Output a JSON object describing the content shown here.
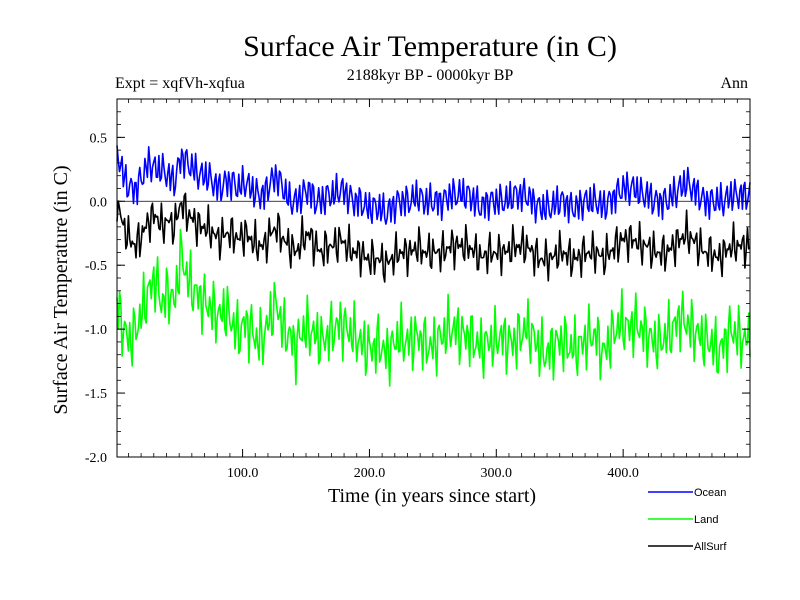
{
  "chart_data": {
    "type": "line",
    "title": "Surface Air Temperature (in C)",
    "subtitle": "2188kyr BP - 0000kyr BP",
    "experiment_label": "Expt = xqfVh-xqfua",
    "period_label": "Ann",
    "xlabel": "Time (in years since start)",
    "ylabel": "Surface Air Temperature (in C)",
    "xlim": [
      1,
      500
    ],
    "ylim": [
      -2.0,
      0.8
    ],
    "x_ticks": [
      100,
      200,
      300,
      400
    ],
    "x_tick_labels": [
      "100.0",
      "200.0",
      "300.0",
      "400.0"
    ],
    "y_ticks": [
      -2.0,
      -1.5,
      -1.0,
      -0.5,
      0.0,
      0.5
    ],
    "y_tick_labels": [
      "-2.0",
      "-1.5",
      "-1.0",
      "-0.5",
      "0.0",
      "0.5"
    ],
    "zero_line": true,
    "legend_position": "bottom-right, below plot",
    "series": [
      {
        "name": "Ocean",
        "color": "#0000ff",
        "values": [
          0.4,
          0.2,
          0.1,
          0.1,
          0.2,
          0.3,
          0.25,
          0.25,
          0.2,
          0.15,
          0.35,
          0.3,
          0.25,
          0.2,
          0.2,
          0.15,
          0.1,
          0.15,
          0.15,
          0.1,
          0.15,
          0.1,
          0.05,
          0.05,
          0.15,
          0.2,
          0.1,
          0.0,
          0.0,
          0.05,
          0.1,
          0.0,
          0.0,
          0.05,
          0.05,
          0.1,
          0.05,
          0.0,
          0.0,
          -0.05,
          -0.05,
          -0.05,
          -0.1,
          -0.05,
          0.0,
          0.0,
          0.0,
          0.05,
          0.0,
          0.0,
          0.0,
          0.0,
          0.05,
          0.05,
          0.05,
          0.05,
          0.0,
          -0.05,
          0.0,
          0.0,
          0.0,
          0.0,
          0.05,
          0.05,
          0.05,
          0.0,
          -0.05,
          -0.05,
          -0.05,
          0.0,
          0.0,
          -0.05,
          -0.05,
          0.0,
          0.0,
          0.0,
          -0.05,
          0.0,
          0.05,
          0.1,
          0.1,
          0.1,
          0.05,
          0.05,
          0.0,
          0.0,
          0.0,
          0.05,
          0.1,
          0.15,
          0.1,
          0.05,
          0.0,
          0.0,
          0.0,
          0.0,
          0.05,
          0.05,
          0.05,
          0.05
        ]
      },
      {
        "name": "Land",
        "color": "#00ff00",
        "values": [
          -0.8,
          -1.0,
          -1.1,
          -1.0,
          -0.85,
          -0.7,
          -0.6,
          -0.8,
          -0.7,
          -0.8,
          -0.4,
          -0.6,
          -0.7,
          -0.75,
          -0.8,
          -0.85,
          -0.9,
          -0.85,
          -0.95,
          -1.05,
          -0.95,
          -1.0,
          -1.1,
          -1.05,
          -0.9,
          -0.8,
          -1.0,
          -1.05,
          -1.15,
          -1.0,
          -1.0,
          -1.05,
          -1.1,
          -1.05,
          -1.0,
          -0.95,
          -1.0,
          -1.05,
          -1.1,
          -1.15,
          -1.15,
          -1.1,
          -1.2,
          -1.15,
          -1.05,
          -1.1,
          -1.1,
          -1.05,
          -1.1,
          -1.15,
          -1.1,
          -1.05,
          -1.0,
          -1.0,
          -1.05,
          -1.05,
          -1.1,
          -1.15,
          -1.1,
          -1.1,
          -1.05,
          -1.1,
          -1.1,
          -1.05,
          -1.0,
          -1.05,
          -1.15,
          -1.2,
          -1.15,
          -1.1,
          -1.1,
          -1.15,
          -1.15,
          -1.1,
          -1.05,
          -1.05,
          -1.2,
          -1.1,
          -1.0,
          -0.95,
          -1.0,
          -0.95,
          -1.0,
          -1.05,
          -1.1,
          -1.1,
          -1.05,
          -1.0,
          -0.9,
          -0.95,
          -1.0,
          -1.05,
          -1.1,
          -1.1,
          -1.2,
          -1.1,
          -1.0,
          -1.05,
          -1.1,
          -1.05
        ]
      },
      {
        "name": "AllSurf",
        "color": "#000000",
        "values": [
          0.0,
          -0.2,
          -0.3,
          -0.35,
          -0.25,
          -0.15,
          -0.1,
          -0.2,
          -0.15,
          -0.2,
          0.0,
          -0.1,
          -0.15,
          -0.2,
          -0.2,
          -0.25,
          -0.3,
          -0.25,
          -0.25,
          -0.3,
          -0.25,
          -0.3,
          -0.35,
          -0.35,
          -0.25,
          -0.2,
          -0.3,
          -0.35,
          -0.4,
          -0.3,
          -0.25,
          -0.35,
          -0.4,
          -0.35,
          -0.35,
          -0.3,
          -0.35,
          -0.4,
          -0.4,
          -0.45,
          -0.45,
          -0.45,
          -0.5,
          -0.45,
          -0.4,
          -0.4,
          -0.4,
          -0.35,
          -0.4,
          -0.4,
          -0.4,
          -0.4,
          -0.35,
          -0.35,
          -0.35,
          -0.35,
          -0.4,
          -0.45,
          -0.4,
          -0.4,
          -0.4,
          -0.4,
          -0.35,
          -0.35,
          -0.35,
          -0.4,
          -0.45,
          -0.45,
          -0.45,
          -0.4,
          -0.4,
          -0.45,
          -0.45,
          -0.4,
          -0.4,
          -0.4,
          -0.45,
          -0.4,
          -0.35,
          -0.3,
          -0.3,
          -0.3,
          -0.35,
          -0.35,
          -0.4,
          -0.4,
          -0.4,
          -0.35,
          -0.3,
          -0.25,
          -0.3,
          -0.35,
          -0.4,
          -0.4,
          -0.45,
          -0.4,
          -0.35,
          -0.35,
          -0.35,
          -0.35
        ]
      }
    ]
  }
}
